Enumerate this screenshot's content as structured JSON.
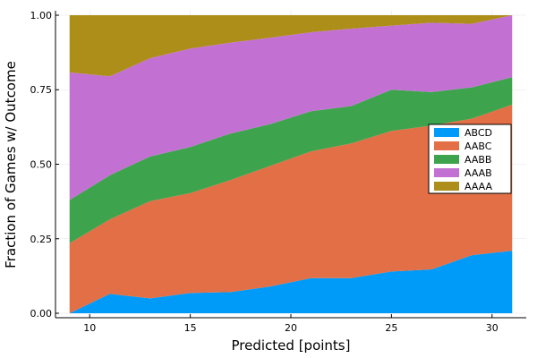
{
  "chart_data": {
    "type": "area",
    "stacked": true,
    "xlabel": "Predicted [points]",
    "ylabel": "Fraction of Games w/ Outcome",
    "xlim": [
      8.3,
      31.7
    ],
    "ylim": [
      -0.015,
      1.015
    ],
    "xticks": [
      10,
      15,
      20,
      25,
      30
    ],
    "xtick_labels": [
      "10",
      "15",
      "20",
      "25",
      "30"
    ],
    "yticks": [
      0,
      0.25,
      0.5,
      0.75,
      1.0
    ],
    "ytick_labels": [
      "0.00",
      "0.25",
      "0.50",
      "0.75",
      "1.00"
    ],
    "grid": true,
    "legend_position": "right",
    "x": [
      9,
      11,
      13,
      15,
      17,
      19,
      21,
      23,
      25,
      27,
      29,
      31
    ],
    "series": [
      {
        "name": "ABCD",
        "color": "#009af9",
        "values": [
          0.0,
          0.065,
          0.05,
          0.068,
          0.071,
          0.09,
          0.118,
          0.118,
          0.14,
          0.147,
          0.195,
          0.21
        ]
      },
      {
        "name": "AABC",
        "color": "#e26f46",
        "values": [
          0.235,
          0.25,
          0.326,
          0.335,
          0.376,
          0.405,
          0.425,
          0.452,
          0.472,
          0.483,
          0.458,
          0.49
        ]
      },
      {
        "name": "AABB",
        "color": "#3da44d",
        "values": [
          0.145,
          0.148,
          0.15,
          0.155,
          0.156,
          0.14,
          0.135,
          0.125,
          0.138,
          0.112,
          0.105,
          0.092
        ]
      },
      {
        "name": "AAAB",
        "color": "#c271d2",
        "values": [
          0.428,
          0.332,
          0.33,
          0.33,
          0.305,
          0.29,
          0.265,
          0.26,
          0.215,
          0.233,
          0.213,
          0.208
        ]
      },
      {
        "name": "AAAA",
        "color": "#ac8e18",
        "values": [
          0.192,
          0.205,
          0.144,
          0.112,
          0.092,
          0.075,
          0.057,
          0.045,
          0.035,
          0.025,
          0.029,
          0.0
        ]
      }
    ]
  }
}
